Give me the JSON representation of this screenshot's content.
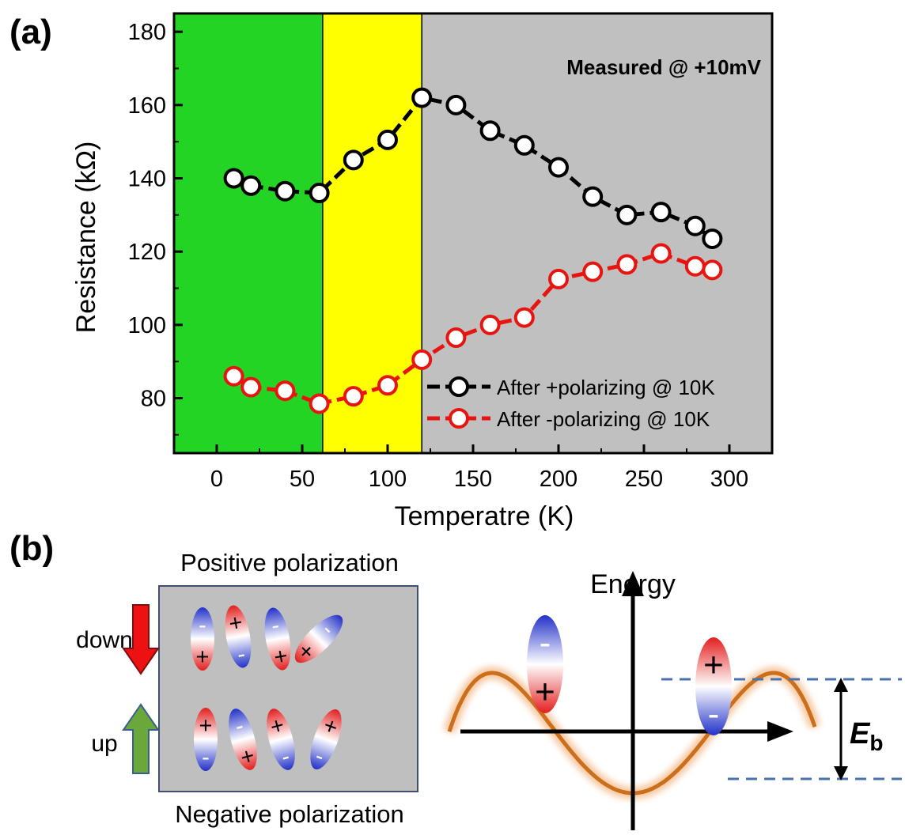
{
  "panel_a": {
    "label": "(a)",
    "annotation": "Measured @ +10mV",
    "region_colors": [
      "#24d424",
      "#ffff00",
      "#c0c0c0"
    ]
  },
  "chart_data": {
    "type": "line",
    "xlabel": "Temperatre (K)",
    "ylabel": "Resistance (kΩ)",
    "xlim": [
      -25,
      325
    ],
    "ylim": [
      65,
      185
    ],
    "xticks": [
      0,
      50,
      100,
      150,
      200,
      250,
      300
    ],
    "yticks": [
      80,
      100,
      120,
      140,
      160,
      180
    ],
    "regions": [
      {
        "from": -25,
        "to": 62,
        "color": "#24d424"
      },
      {
        "from": 62,
        "to": 120,
        "color": "#ffff00"
      },
      {
        "from": 120,
        "to": 325,
        "color": "#c0c0c0"
      }
    ],
    "legend_position": "bottom-right",
    "grid": false,
    "series": [
      {
        "name": "After +polarizing @ 10K",
        "color": "#000000",
        "x": [
          10,
          20,
          40,
          60,
          80,
          100,
          120,
          140,
          160,
          180,
          200,
          220,
          240,
          260,
          280,
          290
        ],
        "y": [
          140,
          138,
          136.5,
          136,
          145,
          150.5,
          162,
          160,
          153,
          149,
          143,
          135,
          130,
          130.8,
          127,
          123.5
        ]
      },
      {
        "name": "After -polarizing @ 10K",
        "color": "#e8140f",
        "x": [
          10,
          20,
          40,
          60,
          80,
          100,
          120,
          140,
          160,
          180,
          200,
          220,
          240,
          260,
          280,
          290
        ],
        "y": [
          86,
          83,
          82,
          78.5,
          80.5,
          83.5,
          90.5,
          96.5,
          100,
          102,
          112.5,
          114.5,
          116.5,
          119.5,
          116,
          115
        ]
      }
    ]
  },
  "panel_b": {
    "label": "(b)",
    "positive_title": "Positive polarization",
    "negative_title": "Negative polarization",
    "down_label": "down",
    "up_label": "up",
    "energy_label": "Energy",
    "barrier_label_main": "E",
    "barrier_label_sub": "b",
    "plus": "+",
    "minus": "-"
  }
}
